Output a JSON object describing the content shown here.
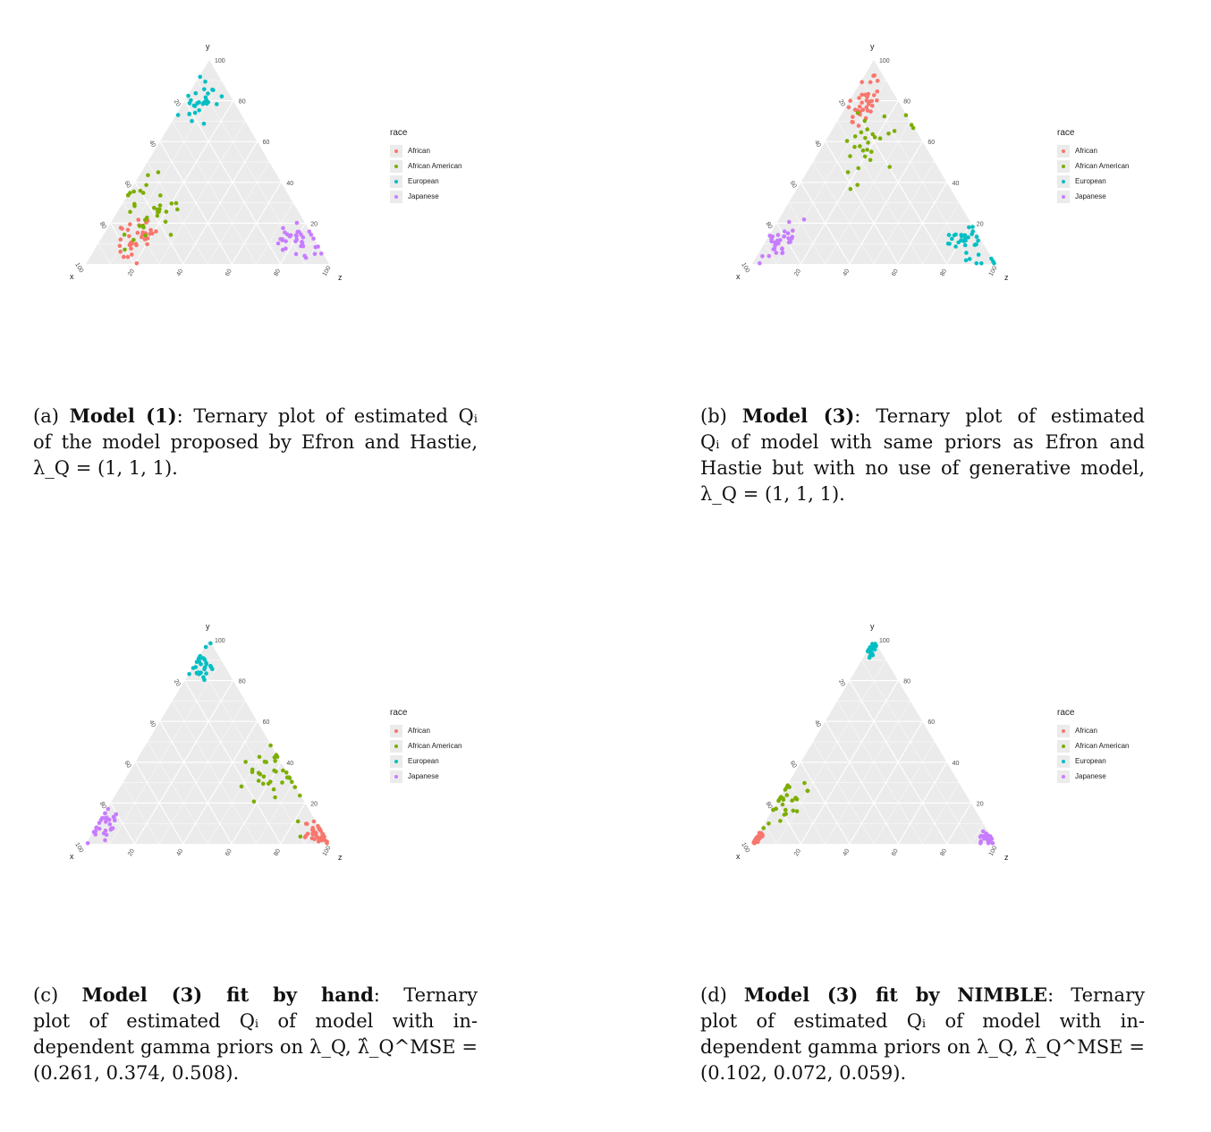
{
  "legend_title": "race",
  "colors": {
    "African": "#F8766D",
    "African American": "#7CAE00",
    "European": "#00BFC4",
    "Japanese": "#C77CFF"
  },
  "panels": [
    {
      "tag": "(a)",
      "caption_bold": "Model (1)",
      "caption_text": ": Ternary plot of estimated Qᵢ of the model proposed by Efron and Hastie, λ_Q = (1, 1, 1).",
      "caption_lines": [
        "(a) Model (1): Ternary plot of estimated Qᵢ",
        "of the model proposed by Efron and Hastie,",
        "λ_Q = (1, 1, 1)."
      ]
    },
    {
      "tag": "(b)",
      "caption_bold": "Model (3)",
      "caption_lines": [
        "(b) Model (3): Ternary plot of estimated",
        "Qᵢ of model with same priors as Efron and",
        "Hastie but with no use of generative model,",
        "λ_Q = (1, 1, 1)."
      ]
    },
    {
      "tag": "(c)",
      "caption_bold": "Model (3) fit by hand",
      "caption_lines": [
        "(c) Model (3) fit by hand: Ternary",
        "plot of estimated Qᵢ of model with in-",
        "dependent gamma priors on λ_Q, λ̂_Q^MSE =",
        "(0.261, 0.374, 0.508)."
      ]
    },
    {
      "tag": "(d)",
      "caption_bold": "Model (3) fit by NIMBLE",
      "caption_lines": [
        "(d) Model (3) fit by NIMBLE: Ternary",
        "plot of estimated Qᵢ of model with in-",
        "dependent gamma priors on λ_Q, λ̂_Q^MSE =",
        "(0.102, 0.072, 0.059)."
      ]
    }
  ],
  "chart_data": [
    {
      "type": "scatter",
      "subtype": "ternary",
      "axes": {
        "x": "x",
        "y": "y",
        "z": "z"
      },
      "ticks": [
        "20",
        "40",
        "60",
        "80",
        "100"
      ],
      "range": [
        0,
        100
      ],
      "legend": [
        "African",
        "African American",
        "European",
        "Japanese"
      ],
      "clusters": [
        {
          "name": "African",
          "center": [
            73,
            13,
            14
          ],
          "spread": 6,
          "n": 40
        },
        {
          "name": "African American",
          "center": [
            58,
            27,
            15
          ],
          "spread": 12,
          "n": 35
        },
        {
          "name": "European",
          "center": [
            13,
            80,
            7
          ],
          "spread": 6,
          "n": 30
        },
        {
          "name": "Japanese",
          "center": [
            7,
            13,
            80
          ],
          "spread": 5,
          "n": 35
        }
      ]
    },
    {
      "type": "scatter",
      "subtype": "ternary",
      "axes": {
        "x": "x",
        "y": "y",
        "z": "z"
      },
      "ticks": [
        "20",
        "40",
        "60",
        "80",
        "100"
      ],
      "range": [
        0,
        100
      ],
      "legend": [
        "African",
        "African American",
        "European",
        "Japanese"
      ],
      "clusters": [
        {
          "name": "African",
          "center": [
            15,
            78,
            7
          ],
          "spread": 6,
          "n": 35
        },
        {
          "name": "African American",
          "center": [
            20,
            62,
            18
          ],
          "spread": 12,
          "n": 30
        },
        {
          "name": "European",
          "center": [
            7,
            10,
            83
          ],
          "spread": 5,
          "n": 35
        },
        {
          "name": "Japanese",
          "center": [
            83,
            10,
            7
          ],
          "spread": 5,
          "n": 35
        }
      ]
    },
    {
      "type": "scatter",
      "subtype": "ternary",
      "axes": {
        "x": "x",
        "y": "y",
        "z": "z"
      },
      "ticks": [
        "20",
        "40",
        "60",
        "80",
        "100"
      ],
      "range": [
        0,
        100
      ],
      "legend": [
        "African",
        "African American",
        "European",
        "Japanese"
      ],
      "clusters": [
        {
          "name": "African",
          "center": [
            2,
            5,
            93
          ],
          "spread": 3,
          "n": 40
        },
        {
          "name": "African American",
          "center": [
            5,
            35,
            60
          ],
          "spread": 10,
          "n": 35
        },
        {
          "name": "European",
          "center": [
            9,
            88,
            3
          ],
          "spread": 5,
          "n": 30
        },
        {
          "name": "Japanese",
          "center": [
            88,
            10,
            2
          ],
          "spread": 5,
          "n": 30
        }
      ]
    },
    {
      "type": "scatter",
      "subtype": "ternary",
      "axes": {
        "x": "x",
        "y": "y",
        "z": "z"
      },
      "ticks": [
        "20",
        "40",
        "60",
        "80",
        "100"
      ],
      "range": [
        0,
        100
      ],
      "legend": [
        "African",
        "African American",
        "European",
        "Japanese"
      ],
      "clusters": [
        {
          "name": "African",
          "center": [
            97,
            2,
            1
          ],
          "spread": 1.5,
          "n": 40
        },
        {
          "name": "African American",
          "center": [
            78,
            20,
            2
          ],
          "spread": 9,
          "n": 30
        },
        {
          "name": "European",
          "center": [
            3,
            95,
            2
          ],
          "spread": 2,
          "n": 20
        },
        {
          "name": "Japanese",
          "center": [
            2,
            3,
            95
          ],
          "spread": 2,
          "n": 25
        }
      ]
    }
  ]
}
